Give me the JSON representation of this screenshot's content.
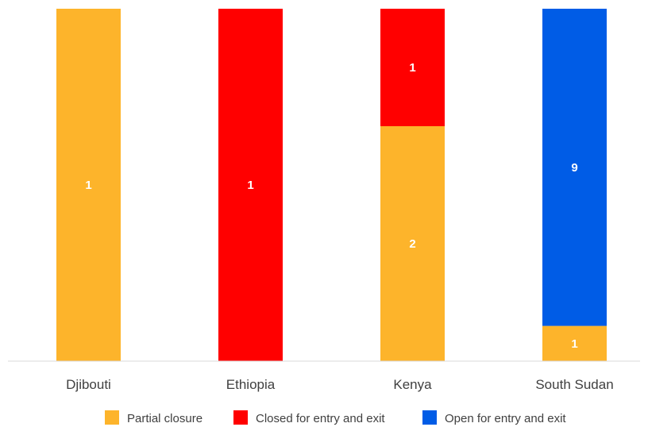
{
  "chart_data": {
    "type": "bar",
    "stacked": "percent",
    "categories": [
      "Djibouti",
      "Ethiopia",
      "Kenya",
      "South Sudan"
    ],
    "series": [
      {
        "name": "Partial closure",
        "color": "#FDB42B",
        "values": [
          1,
          0,
          2,
          1
        ]
      },
      {
        "name": "Closed for entry and exit",
        "color": "#FF0000",
        "values": [
          0,
          1,
          1,
          0
        ]
      },
      {
        "name": "Open for entry and exit",
        "color": "#005CE6",
        "values": [
          0,
          0,
          0,
          9
        ]
      }
    ],
    "title": "",
    "xlabel": "",
    "ylabel": "",
    "grid": false,
    "legend": "bottom"
  }
}
